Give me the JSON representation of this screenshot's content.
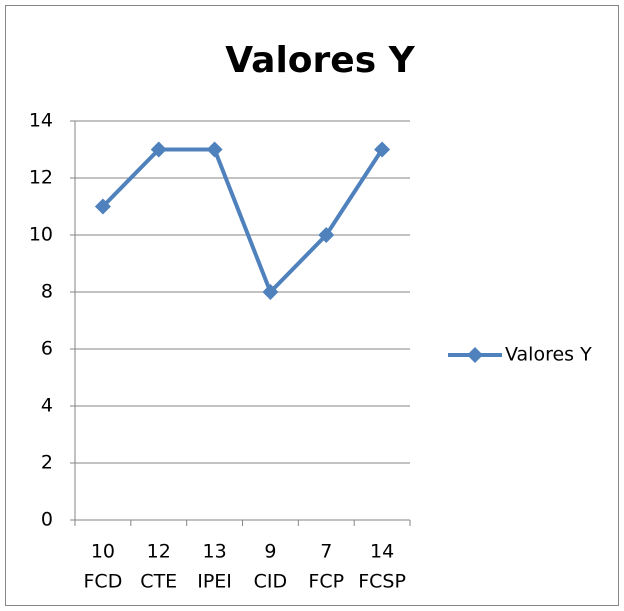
{
  "chart_data": {
    "type": "line",
    "title": "Valores Y",
    "categories": [
      [
        "10",
        "FCD"
      ],
      [
        "12",
        "CTE"
      ],
      [
        "13",
        "IPEI"
      ],
      [
        "9",
        "CID"
      ],
      [
        "7",
        "FCP"
      ],
      [
        "14",
        "FCSP"
      ]
    ],
    "series": [
      {
        "name": "Valores Y",
        "color": "#4f81bd",
        "values": [
          11,
          13,
          13,
          8,
          10,
          13
        ]
      }
    ],
    "ylim": [
      0,
      14
    ],
    "yticks": [
      0,
      2,
      4,
      6,
      8,
      10,
      12,
      14
    ],
    "grid": true,
    "legend": "right"
  }
}
